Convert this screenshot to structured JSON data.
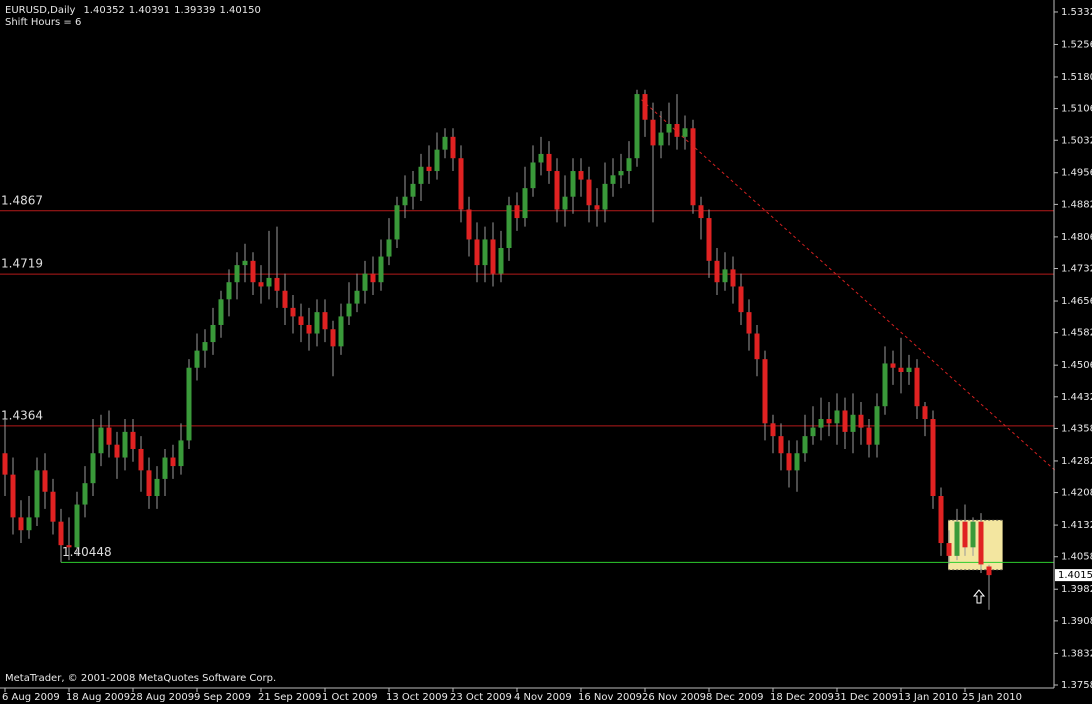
{
  "chart_data": {
    "type": "candlestick",
    "title": "EURUSD,Daily",
    "header_values": [
      1.40352,
      1.40391,
      1.39339,
      {
        "value": 1.4015,
        "label": "1.40150"
      }
    ],
    "subtitle": "Shift Hours = 6",
    "footer": "MetaTrader, © 2001-2008 MetaQuotes Software Corp.",
    "categories": [
      "6 Aug 2009",
      null,
      null,
      null,
      null,
      null,
      null,
      null,
      "18 Aug 2009",
      null,
      null,
      null,
      null,
      null,
      null,
      null,
      "28 Aug 2009",
      null,
      null,
      null,
      null,
      null,
      null,
      null,
      "9 Sep 2009",
      null,
      null,
      null,
      null,
      null,
      null,
      null,
      "21 Sep 2009",
      null,
      null,
      null,
      null,
      null,
      null,
      null,
      "1 Oct 2009",
      null,
      null,
      null,
      null,
      null,
      null,
      null,
      "13 Oct 2009",
      null,
      null,
      null,
      null,
      null,
      null,
      null,
      "23 Oct 2009",
      null,
      null,
      null,
      null,
      null,
      null,
      null,
      "4 Nov 2009",
      null,
      null,
      null,
      null,
      null,
      null,
      null,
      "16 Nov 2009",
      null,
      null,
      null,
      null,
      null,
      null,
      null,
      "26 Nov 2009",
      null,
      null,
      null,
      null,
      null,
      null,
      null,
      "8 Dec 2009",
      null,
      null,
      null,
      null,
      null,
      null,
      null,
      "18 Dec 2009",
      null,
      null,
      null,
      null,
      null,
      null,
      null,
      "31 Dec 2009",
      null,
      null,
      null,
      null,
      null,
      null,
      null,
      "13 Jan 2010",
      null,
      null,
      null,
      null,
      null,
      null,
      null,
      "25 Jan 2010",
      null,
      null,
      null
    ],
    "open": [
      1.43,
      1.425,
      1.415,
      1.412,
      1.415,
      1.426,
      1.421,
      1.414,
      1.4085,
      1.408,
      1.418,
      1.423,
      1.43,
      1.436,
      1.432,
      1.429,
      1.435,
      1.431,
      1.426,
      1.42,
      1.424,
      1.429,
      1.427,
      1.433,
      1.45,
      1.454,
      1.456,
      1.46,
      1.466,
      1.47,
      1.474,
      1.475,
      1.47,
      1.469,
      1.471,
      1.468,
      1.464,
      1.462,
      1.46,
      1.458,
      1.463,
      1.459,
      1.455,
      1.462,
      1.465,
      1.468,
      1.472,
      1.47,
      1.476,
      1.48,
      1.488,
      1.49,
      1.493,
      1.497,
      1.496,
      1.501,
      1.504,
      1.499,
      1.487,
      1.48,
      1.474,
      1.48,
      1.472,
      1.478,
      1.488,
      1.485,
      1.492,
      1.498,
      1.5,
      1.496,
      1.487,
      1.49,
      1.496,
      1.494,
      1.488,
      1.487,
      1.493,
      1.495,
      1.496,
      1.499,
      1.514,
      1.508,
      1.502,
      1.505,
      1.507,
      1.504,
      1.506,
      1.488,
      1.485,
      1.475,
      1.47,
      1.473,
      1.469,
      1.463,
      1.458,
      1.452,
      1.437,
      1.434,
      1.43,
      1.426,
      1.43,
      1.434,
      1.436,
      1.438,
      1.437,
      1.44,
      1.435,
      1.439,
      1.436,
      1.432,
      1.441,
      1.451,
      1.45,
      1.449,
      1.45,
      1.441,
      1.438,
      1.42,
      1.409,
      1.406,
      1.414,
      1.408,
      1.414,
      1.40352
    ],
    "high": [
      1.438,
      1.429,
      1.419,
      1.42,
      1.429,
      1.43,
      1.424,
      1.417,
      1.415,
      1.421,
      1.427,
      1.438,
      1.439,
      1.44,
      1.435,
      1.438,
      1.438,
      1.434,
      1.429,
      1.427,
      1.431,
      1.432,
      1.437,
      1.452,
      1.458,
      1.459,
      1.464,
      1.468,
      1.473,
      1.477,
      1.479,
      1.477,
      1.474,
      1.482,
      1.483,
      1.472,
      1.467,
      1.465,
      1.464,
      1.466,
      1.466,
      1.461,
      1.465,
      1.47,
      1.472,
      1.475,
      1.476,
      1.48,
      1.485,
      1.49,
      1.495,
      1.496,
      1.5,
      1.502,
      1.505,
      1.506,
      1.506,
      1.502,
      1.49,
      1.484,
      1.483,
      1.484,
      1.482,
      1.49,
      1.491,
      1.497,
      1.502,
      1.504,
      1.503,
      1.499,
      1.495,
      1.499,
      1.499,
      1.497,
      1.492,
      1.498,
      1.499,
      1.5,
      1.503,
      1.515,
      1.515,
      1.512,
      1.51,
      1.512,
      1.514,
      1.509,
      1.508,
      1.49,
      1.487,
      1.478,
      1.477,
      1.476,
      1.472,
      1.466,
      1.46,
      1.454,
      1.439,
      1.437,
      1.433,
      1.433,
      1.439,
      1.441,
      1.443,
      1.442,
      1.444,
      1.443,
      1.444,
      1.442,
      1.438,
      1.444,
      1.455,
      1.454,
      1.457,
      1.453,
      1.452,
      1.442,
      1.44,
      1.422,
      1.412,
      1.417,
      1.418,
      1.415,
      1.416,
      1.40391
    ],
    "low": [
      1.42,
      1.411,
      1.409,
      1.41,
      1.413,
      1.417,
      1.411,
      1.4045,
      1.405,
      1.406,
      1.415,
      1.42,
      1.427,
      1.429,
      1.424,
      1.426,
      1.428,
      1.421,
      1.417,
      1.417,
      1.42,
      1.424,
      1.425,
      1.431,
      1.447,
      1.45,
      1.453,
      1.457,
      1.462,
      1.466,
      1.47,
      1.467,
      1.465,
      1.466,
      1.464,
      1.46,
      1.458,
      1.456,
      1.454,
      1.455,
      1.456,
      1.448,
      1.453,
      1.46,
      1.463,
      1.465,
      1.467,
      1.468,
      1.474,
      1.478,
      1.485,
      1.487,
      1.489,
      1.493,
      1.494,
      1.499,
      1.496,
      1.484,
      1.476,
      1.47,
      1.47,
      1.469,
      1.47,
      1.475,
      1.482,
      1.483,
      1.49,
      1.495,
      1.493,
      1.484,
      1.483,
      1.486,
      1.49,
      1.484,
      1.483,
      1.484,
      1.49,
      1.492,
      1.493,
      1.497,
      1.504,
      1.484,
      1.499,
      1.502,
      1.501,
      1.501,
      1.486,
      1.48,
      1.471,
      1.467,
      1.468,
      1.465,
      1.46,
      1.454,
      1.448,
      1.433,
      1.43,
      1.426,
      1.422,
      1.421,
      1.428,
      1.432,
      1.433,
      1.434,
      1.432,
      1.431,
      1.43,
      1.432,
      1.429,
      1.429,
      1.439,
      1.446,
      1.444,
      1.446,
      1.438,
      1.434,
      1.417,
      1.406,
      1.404,
      1.405,
      1.406,
      1.406,
      1.402,
      1.39339
    ],
    "close": [
      1.425,
      1.415,
      1.412,
      1.415,
      1.426,
      1.421,
      1.414,
      1.4085,
      1.408,
      1.418,
      1.423,
      1.43,
      1.436,
      1.432,
      1.429,
      1.435,
      1.431,
      1.426,
      1.42,
      1.424,
      1.429,
      1.427,
      1.433,
      1.45,
      1.454,
      1.456,
      1.46,
      1.466,
      1.47,
      1.474,
      1.475,
      1.47,
      1.469,
      1.471,
      1.468,
      1.464,
      1.462,
      1.46,
      1.458,
      1.463,
      1.459,
      1.455,
      1.462,
      1.465,
      1.468,
      1.472,
      1.47,
      1.476,
      1.48,
      1.488,
      1.49,
      1.493,
      1.497,
      1.496,
      1.501,
      1.504,
      1.499,
      1.487,
      1.48,
      1.474,
      1.48,
      1.472,
      1.478,
      1.488,
      1.485,
      1.492,
      1.498,
      1.5,
      1.496,
      1.487,
      1.49,
      1.496,
      1.494,
      1.488,
      1.487,
      1.493,
      1.495,
      1.496,
      1.499,
      1.514,
      1.508,
      1.502,
      1.505,
      1.507,
      1.504,
      1.506,
      1.488,
      1.485,
      1.475,
      1.47,
      1.473,
      1.469,
      1.463,
      1.458,
      1.452,
      1.437,
      1.434,
      1.43,
      1.426,
      1.43,
      1.434,
      1.436,
      1.438,
      1.437,
      1.44,
      1.435,
      1.439,
      1.436,
      1.432,
      1.441,
      1.451,
      1.45,
      1.449,
      1.45,
      1.441,
      1.438,
      1.42,
      1.409,
      1.406,
      1.414,
      1.408,
      1.414,
      1.404,
      1.4015
    ],
    "up_color": "#3a9a3a",
    "down_color": "#e02222",
    "wick_color": "#9a9a9a",
    "ylim": [
      1.3751,
      1.536
    ],
    "yticks": [
      {
        "value": 1.5332,
        "label": "1.53320"
      },
      {
        "value": 1.5256,
        "label": "1.52560"
      },
      {
        "value": 1.518,
        "label": "1.51800"
      },
      {
        "value": 1.5106,
        "label": "1.51060"
      },
      {
        "value": 1.5032,
        "label": "1.50320"
      },
      {
        "value": 1.4956,
        "label": "1.49560"
      },
      {
        "value": 1.4882,
        "label": "1.48820"
      },
      {
        "value": 1.4806,
        "label": "1.48060"
      },
      {
        "value": 1.4732,
        "label": "1.47320"
      },
      {
        "value": 1.4656,
        "label": "1.46560"
      },
      {
        "value": 1.4582,
        "label": "1.45820"
      },
      {
        "value": 1.4506,
        "label": "1.45060"
      },
      {
        "value": 1.4432,
        "label": "1.44320"
      },
      {
        "value": 1.4358,
        "label": "1.43580"
      },
      {
        "value": 1.4282,
        "label": "1.42820"
      },
      {
        "value": 1.4208,
        "label": "1.42080"
      },
      {
        "value": 1.4132,
        "label": "1.41320"
      },
      {
        "value": 1.4058,
        "label": "1.40580"
      },
      {
        "value": 1.3982,
        "label": "1.39820"
      },
      {
        "value": 1.3908,
        "label": "1.39080"
      },
      {
        "value": 1.3832,
        "label": "1.38320"
      },
      {
        "value": 1.3758,
        "label": "1.37580"
      }
    ],
    "current_price": {
      "value": 1.4015,
      "label": "1.40150"
    },
    "levels": [
      {
        "value": 1.4867,
        "color": "#b41a1a"
      },
      {
        "value": 1.4719,
        "color": "#b41a1a"
      },
      {
        "value": 1.4364,
        "color": "#b41a1a"
      },
      {
        "value": 1.40448,
        "color": "#2ecc2e",
        "from": 7
      }
    ],
    "trendline": {
      "x": [
        79,
        131.25
      ],
      "y": [
        1.5136,
        1.426
      ],
      "color": "#d02020"
    },
    "highlight": {
      "x": [
        117.9,
        124.7
      ],
      "y": [
        1.4144,
        1.4027
      ],
      "color": "#f3e6a0"
    }
  }
}
